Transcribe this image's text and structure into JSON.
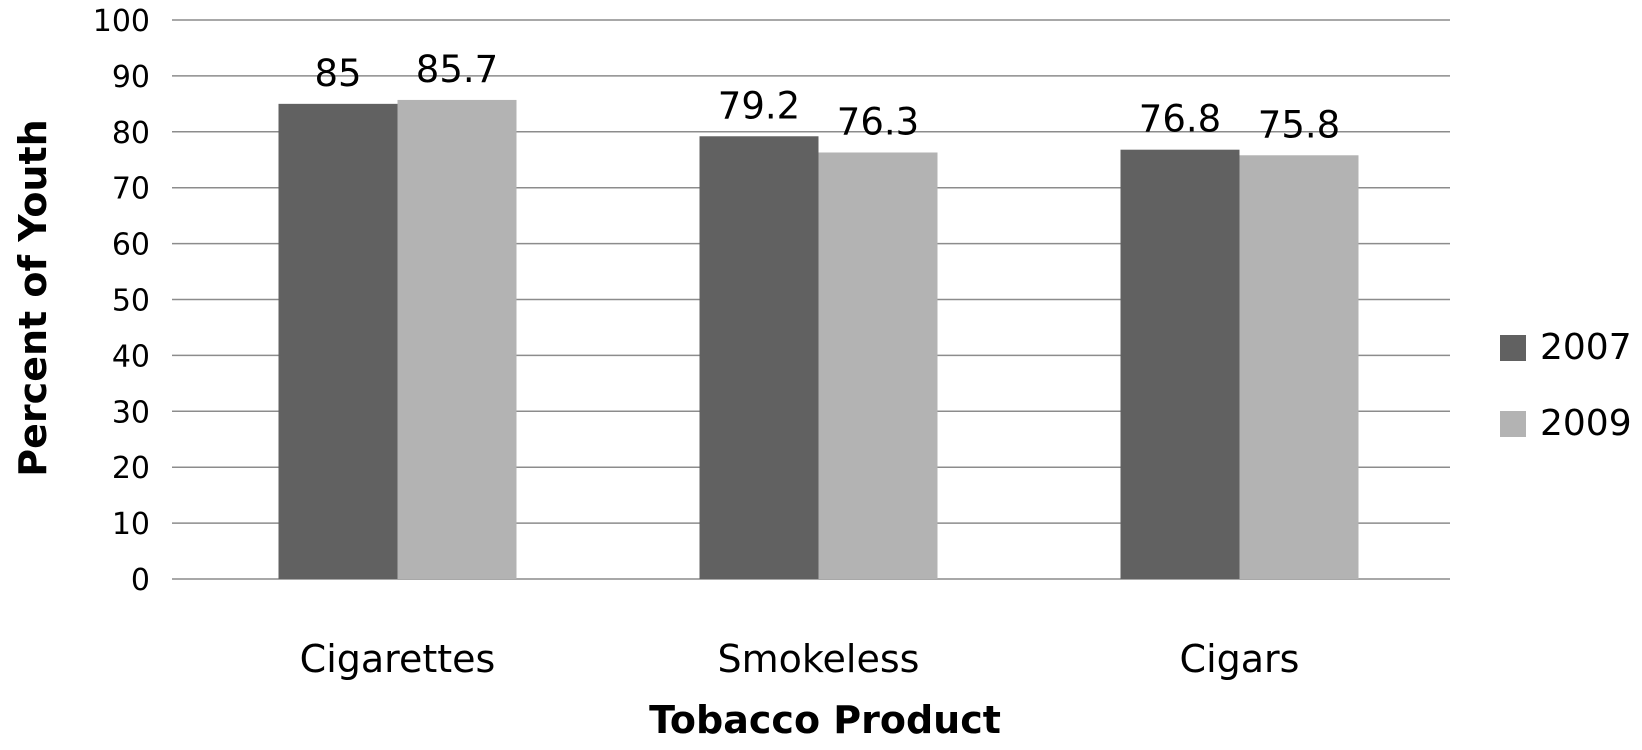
{
  "chart_data": {
    "type": "bar",
    "categories": [
      "Cigarettes",
      "Smokeless",
      "Cigars"
    ],
    "series": [
      {
        "name": "2007",
        "values": [
          85,
          79.2,
          76.8
        ],
        "data_labels": [
          "85",
          "79.2",
          "76.8"
        ],
        "color": "#616161"
      },
      {
        "name": "2009",
        "values": [
          85.7,
          76.3,
          75.8
        ],
        "data_labels": [
          "85.7",
          "76.3",
          "75.8"
        ],
        "color": "#b3b3b3"
      }
    ],
    "xlabel": "Tobacco Product",
    "ylabel": "Percent of Youth",
    "ylim": [
      0,
      100
    ],
    "yticks": [
      0,
      10,
      20,
      30,
      40,
      50,
      60,
      70,
      80,
      90,
      100
    ],
    "grid": true,
    "legend_position": "right"
  }
}
